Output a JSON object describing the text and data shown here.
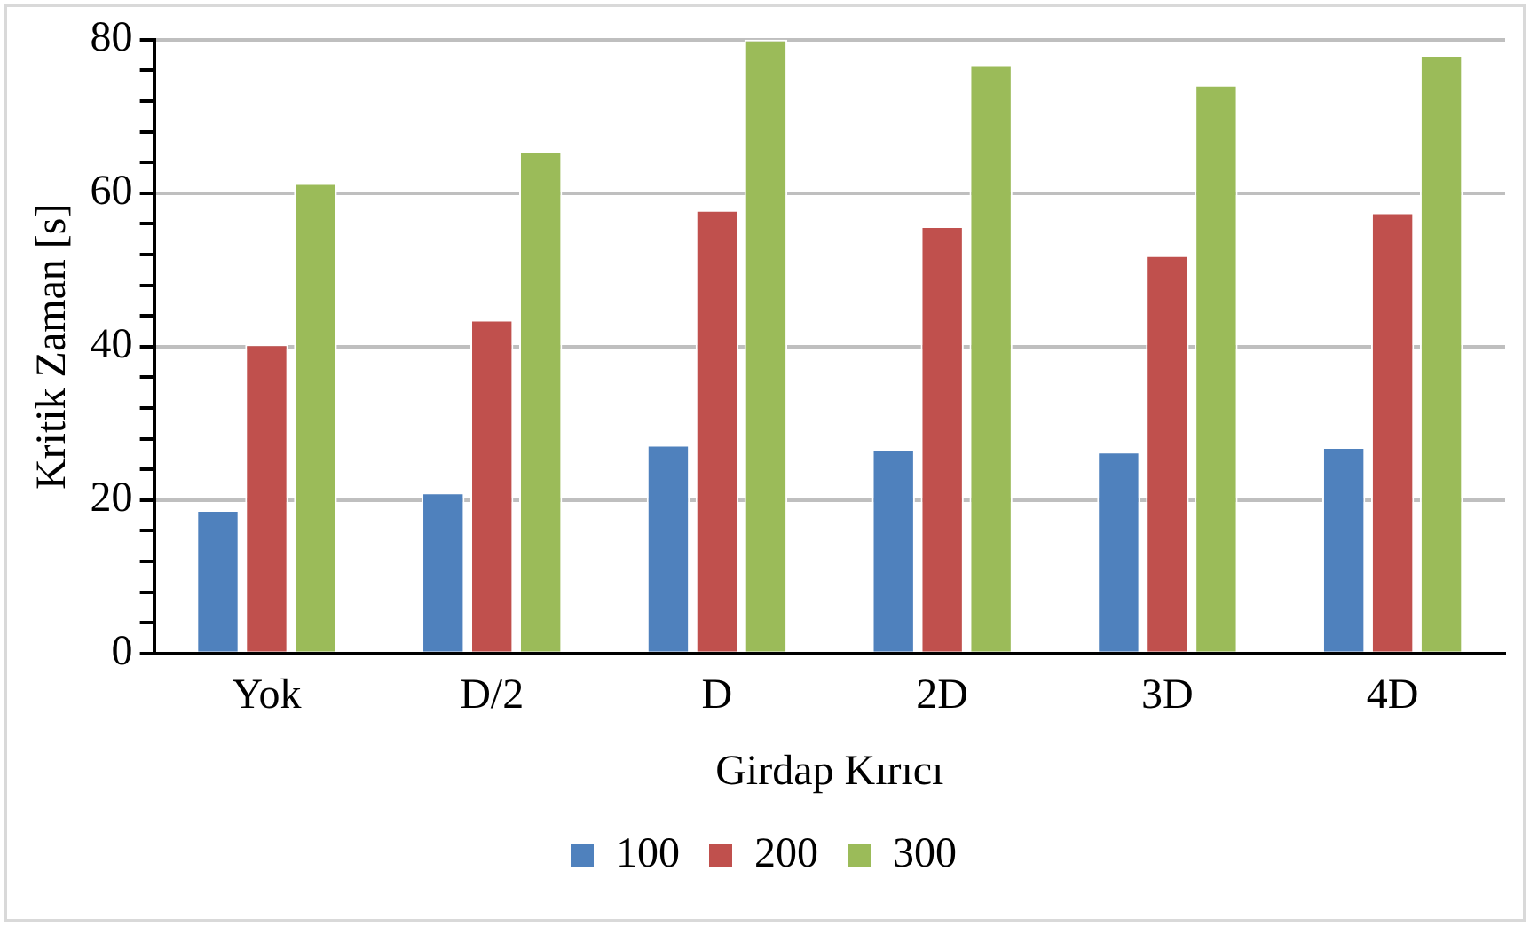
{
  "chart_data": {
    "type": "bar",
    "xlabel": "Girdap Kırıcı",
    "ylabel": "Kritik Zaman [s]",
    "categories": [
      "Yok",
      "D/2",
      "D",
      "2D",
      "3D",
      "4D"
    ],
    "series": [
      {
        "name": "100",
        "color": "#4f81bd",
        "values": [
          18.7,
          21.0,
          27.2,
          26.6,
          26.3,
          26.9
        ]
      },
      {
        "name": "200",
        "color": "#c0504d",
        "values": [
          40.3,
          43.5,
          57.8,
          55.7,
          51.9,
          57.5
        ]
      },
      {
        "name": "300",
        "color": "#9bbb59",
        "values": [
          61.3,
          65.4,
          80,
          76.8,
          74.1,
          78
        ]
      }
    ],
    "ylim": [
      0,
      80
    ],
    "yticks": [
      0,
      {
        "value": 4,
        "label": null
      },
      {
        "value": 8,
        "label": null
      },
      {
        "value": 12,
        "label": null
      },
      {
        "value": 16,
        "label": null
      },
      20,
      {
        "value": 24,
        "label": null
      },
      {
        "value": 28,
        "label": null
      },
      {
        "value": 32,
        "label": null
      },
      {
        "value": 36,
        "label": null
      },
      40,
      {
        "value": 44,
        "label": null
      },
      {
        "value": 48,
        "label": null
      },
      {
        "value": 52,
        "label": null
      },
      {
        "value": 56,
        "label": null
      },
      60,
      {
        "value": 64,
        "label": null
      },
      {
        "value": 68,
        "label": null
      },
      {
        "value": 72,
        "label": null
      },
      {
        "value": 76,
        "label": null
      },
      80
    ],
    "grid": "y",
    "legend": "bottom"
  }
}
